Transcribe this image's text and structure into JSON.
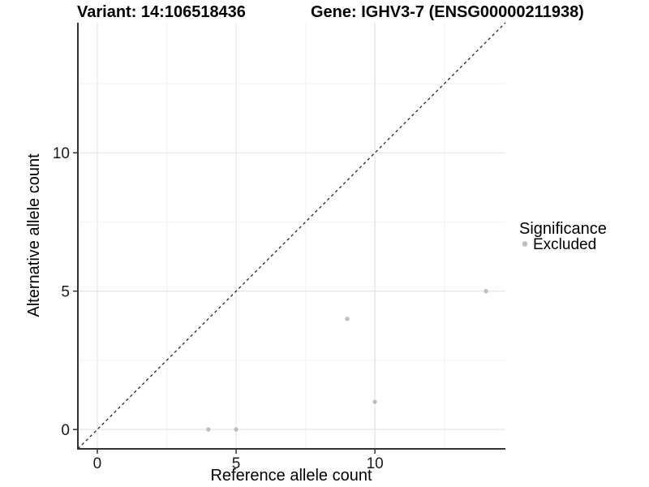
{
  "header": {
    "variant_title": "Variant: 14:106518436",
    "gene_title": "Gene: IGHV3-7 (ENSG00000211938)"
  },
  "chart_data": {
    "type": "scatter",
    "title_left": "Variant: 14:106518436",
    "title_right": "Gene: IGHV3-7 (ENSG00000211938)",
    "xlabel": "Reference allele count",
    "ylabel": "Alternative allele count",
    "xlim": [
      -0.7,
      14.7
    ],
    "ylim": [
      -0.7,
      14.7
    ],
    "x_major_ticks": [
      0,
      5,
      10
    ],
    "y_major_ticks": [
      0,
      5,
      10
    ],
    "x_minor_ticks": [
      2.5,
      7.5,
      12.5
    ],
    "y_minor_ticks": [
      2.5,
      7.5,
      12.5
    ],
    "grid": true,
    "identity_line": {
      "show": true,
      "style": "dashed",
      "slope": 1,
      "intercept": 0
    },
    "series": [
      {
        "name": "Excluded",
        "color": "#bebebe",
        "points": [
          {
            "x": 4,
            "y": 0
          },
          {
            "x": 5,
            "y": 0
          },
          {
            "x": 9,
            "y": 4
          },
          {
            "x": 10,
            "y": 1
          },
          {
            "x": 14,
            "y": 5
          }
        ]
      }
    ],
    "legend": {
      "title": "Significance",
      "position": "right",
      "items": [
        {
          "label": "Excluded",
          "color": "#bebebe"
        }
      ]
    }
  },
  "colors": {
    "background": "#ffffff",
    "grid_major": "#e6e6e6",
    "grid_minor": "#f2f2f2",
    "axis_line": "#333333",
    "tick_mark": "#333333",
    "identity_line": "#262626",
    "point": "#bebebe"
  }
}
